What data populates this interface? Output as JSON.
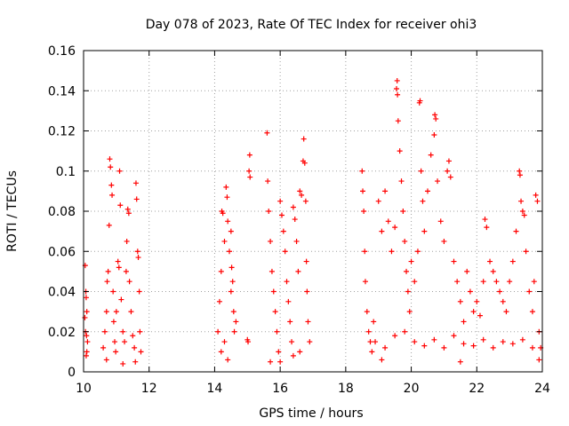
{
  "chart_data": {
    "type": "scatter",
    "title": "Day 078 of 2023, Rate Of TEC Index for receiver ohi3",
    "xlabel": "GPS time / hours",
    "ylabel": "ROTI / TECUs",
    "xlim": [
      10,
      24
    ],
    "ylim": [
      0,
      0.16
    ],
    "xticks": [
      10,
      12,
      14,
      16,
      18,
      20,
      22,
      24
    ],
    "yticks": [
      0,
      0.02,
      0.04,
      0.06,
      0.08,
      0.1,
      0.12,
      0.14,
      0.16
    ],
    "ytick_labels": [
      "0",
      "0.02",
      "0.04",
      "0.06",
      "0.08",
      "0.1",
      "0.12",
      "0.14",
      "0.16"
    ],
    "grid": true,
    "marker": "+",
    "color": "#ff0000",
    "points": [
      [
        10.05,
        0.053
      ],
      [
        10.07,
        0.04
      ],
      [
        10.08,
        0.037
      ],
      [
        10.1,
        0.03
      ],
      [
        10.06,
        0.02
      ],
      [
        10.09,
        0.018
      ],
      [
        10.1,
        0.01
      ],
      [
        10.08,
        0.008
      ],
      [
        10.12,
        0.015
      ],
      [
        10.04,
        0.027
      ],
      [
        10.6,
        0.012
      ],
      [
        10.65,
        0.02
      ],
      [
        10.7,
        0.03
      ],
      [
        10.72,
        0.045
      ],
      [
        10.75,
        0.05
      ],
      [
        10.78,
        0.073
      ],
      [
        10.8,
        0.106
      ],
      [
        10.82,
        0.102
      ],
      [
        10.85,
        0.093
      ],
      [
        10.87,
        0.088
      ],
      [
        10.9,
        0.04
      ],
      [
        10.92,
        0.025
      ],
      [
        10.95,
        0.015
      ],
      [
        10.98,
        0.01
      ],
      [
        11.0,
        0.03
      ],
      [
        11.05,
        0.055
      ],
      [
        11.08,
        0.052
      ],
      [
        11.1,
        0.1
      ],
      [
        11.12,
        0.083
      ],
      [
        11.15,
        0.036
      ],
      [
        11.2,
        0.02
      ],
      [
        11.25,
        0.015
      ],
      [
        11.3,
        0.05
      ],
      [
        11.32,
        0.065
      ],
      [
        11.35,
        0.081
      ],
      [
        11.38,
        0.079
      ],
      [
        11.4,
        0.045
      ],
      [
        11.45,
        0.03
      ],
      [
        11.5,
        0.018
      ],
      [
        11.55,
        0.012
      ],
      [
        11.6,
        0.094
      ],
      [
        11.62,
        0.086
      ],
      [
        11.65,
        0.06
      ],
      [
        11.67,
        0.057
      ],
      [
        11.7,
        0.04
      ],
      [
        11.72,
        0.02
      ],
      [
        11.75,
        0.01
      ],
      [
        11.58,
        0.005
      ],
      [
        11.2,
        0.004
      ],
      [
        10.7,
        0.006
      ],
      [
        14.1,
        0.02
      ],
      [
        14.15,
        0.035
      ],
      [
        14.2,
        0.05
      ],
      [
        14.22,
        0.08
      ],
      [
        14.25,
        0.079
      ],
      [
        14.3,
        0.065
      ],
      [
        14.35,
        0.092
      ],
      [
        14.38,
        0.087
      ],
      [
        14.4,
        0.075
      ],
      [
        14.45,
        0.06
      ],
      [
        14.5,
        0.07
      ],
      [
        14.52,
        0.052
      ],
      [
        14.55,
        0.045
      ],
      [
        14.58,
        0.03
      ],
      [
        14.6,
        0.02
      ],
      [
        14.3,
        0.015
      ],
      [
        14.2,
        0.01
      ],
      [
        14.4,
        0.006
      ],
      [
        14.65,
        0.025
      ],
      [
        14.5,
        0.04
      ],
      [
        15.0,
        0.016
      ],
      [
        15.02,
        0.015
      ],
      [
        15.05,
        0.1
      ],
      [
        15.07,
        0.108
      ],
      [
        15.08,
        0.097
      ],
      [
        15.6,
        0.119
      ],
      [
        15.62,
        0.095
      ],
      [
        15.65,
        0.08
      ],
      [
        15.7,
        0.065
      ],
      [
        15.75,
        0.05
      ],
      [
        15.8,
        0.04
      ],
      [
        15.85,
        0.03
      ],
      [
        15.9,
        0.02
      ],
      [
        15.95,
        0.01
      ],
      [
        16.0,
        0.085
      ],
      [
        16.05,
        0.078
      ],
      [
        16.1,
        0.07
      ],
      [
        16.15,
        0.06
      ],
      [
        16.2,
        0.045
      ],
      [
        16.25,
        0.035
      ],
      [
        16.3,
        0.025
      ],
      [
        16.35,
        0.015
      ],
      [
        16.4,
        0.082
      ],
      [
        16.45,
        0.076
      ],
      [
        16.5,
        0.065
      ],
      [
        16.55,
        0.05
      ],
      [
        16.6,
        0.09
      ],
      [
        16.65,
        0.088
      ],
      [
        16.7,
        0.105
      ],
      [
        16.72,
        0.116
      ],
      [
        16.75,
        0.104
      ],
      [
        16.78,
        0.085
      ],
      [
        16.8,
        0.055
      ],
      [
        16.82,
        0.04
      ],
      [
        16.85,
        0.025
      ],
      [
        16.9,
        0.015
      ],
      [
        16.4,
        0.008
      ],
      [
        16.0,
        0.005
      ],
      [
        15.7,
        0.005
      ],
      [
        16.6,
        0.01
      ],
      [
        18.5,
        0.1
      ],
      [
        18.52,
        0.09
      ],
      [
        18.55,
        0.08
      ],
      [
        18.58,
        0.06
      ],
      [
        18.6,
        0.045
      ],
      [
        18.65,
        0.03
      ],
      [
        18.7,
        0.02
      ],
      [
        18.75,
        0.015
      ],
      [
        18.8,
        0.01
      ],
      [
        18.85,
        0.025
      ],
      [
        19.0,
        0.085
      ],
      [
        19.1,
        0.07
      ],
      [
        19.2,
        0.09
      ],
      [
        19.3,
        0.075
      ],
      [
        19.4,
        0.06
      ],
      [
        19.5,
        0.072
      ],
      [
        19.55,
        0.141
      ],
      [
        19.57,
        0.145
      ],
      [
        19.58,
        0.138
      ],
      [
        19.6,
        0.125
      ],
      [
        19.65,
        0.11
      ],
      [
        19.7,
        0.095
      ],
      [
        19.75,
        0.08
      ],
      [
        19.8,
        0.065
      ],
      [
        19.85,
        0.05
      ],
      [
        19.9,
        0.04
      ],
      [
        19.95,
        0.03
      ],
      [
        20.0,
        0.055
      ],
      [
        20.1,
        0.045
      ],
      [
        20.2,
        0.06
      ],
      [
        20.25,
        0.134
      ],
      [
        20.27,
        0.135
      ],
      [
        20.3,
        0.1
      ],
      [
        20.35,
        0.085
      ],
      [
        20.4,
        0.07
      ],
      [
        20.5,
        0.09
      ],
      [
        20.6,
        0.108
      ],
      [
        20.7,
        0.118
      ],
      [
        20.72,
        0.128
      ],
      [
        20.75,
        0.126
      ],
      [
        20.8,
        0.095
      ],
      [
        20.9,
        0.075
      ],
      [
        21.0,
        0.065
      ],
      [
        21.1,
        0.1
      ],
      [
        21.15,
        0.105
      ],
      [
        21.2,
        0.097
      ],
      [
        21.3,
        0.055
      ],
      [
        21.4,
        0.045
      ],
      [
        21.5,
        0.035
      ],
      [
        21.6,
        0.025
      ],
      [
        21.7,
        0.05
      ],
      [
        21.8,
        0.04
      ],
      [
        21.9,
        0.03
      ],
      [
        22.0,
        0.035
      ],
      [
        22.1,
        0.028
      ],
      [
        22.2,
        0.045
      ],
      [
        22.25,
        0.076
      ],
      [
        22.3,
        0.072
      ],
      [
        22.4,
        0.055
      ],
      [
        22.5,
        0.05
      ],
      [
        22.6,
        0.045
      ],
      [
        22.7,
        0.04
      ],
      [
        22.8,
        0.035
      ],
      [
        22.9,
        0.03
      ],
      [
        23.0,
        0.045
      ],
      [
        23.1,
        0.055
      ],
      [
        23.2,
        0.07
      ],
      [
        23.3,
        0.1
      ],
      [
        23.32,
        0.098
      ],
      [
        23.35,
        0.085
      ],
      [
        23.4,
        0.08
      ],
      [
        23.45,
        0.078
      ],
      [
        23.5,
        0.06
      ],
      [
        23.6,
        0.04
      ],
      [
        23.7,
        0.03
      ],
      [
        23.8,
        0.088
      ],
      [
        23.85,
        0.085
      ],
      [
        23.9,
        0.02
      ],
      [
        23.95,
        0.012
      ],
      [
        23.75,
        0.045
      ],
      [
        18.9,
        0.015
      ],
      [
        19.2,
        0.012
      ],
      [
        19.5,
        0.018
      ],
      [
        19.8,
        0.02
      ],
      [
        20.1,
        0.015
      ],
      [
        20.4,
        0.013
      ],
      [
        20.7,
        0.016
      ],
      [
        21.0,
        0.012
      ],
      [
        21.3,
        0.018
      ],
      [
        21.6,
        0.014
      ],
      [
        21.9,
        0.013
      ],
      [
        22.2,
        0.016
      ],
      [
        22.5,
        0.012
      ],
      [
        22.8,
        0.015
      ],
      [
        23.1,
        0.014
      ],
      [
        23.4,
        0.016
      ],
      [
        23.7,
        0.012
      ],
      [
        23.9,
        0.006
      ],
      [
        21.5,
        0.005
      ],
      [
        19.1,
        0.006
      ]
    ]
  }
}
